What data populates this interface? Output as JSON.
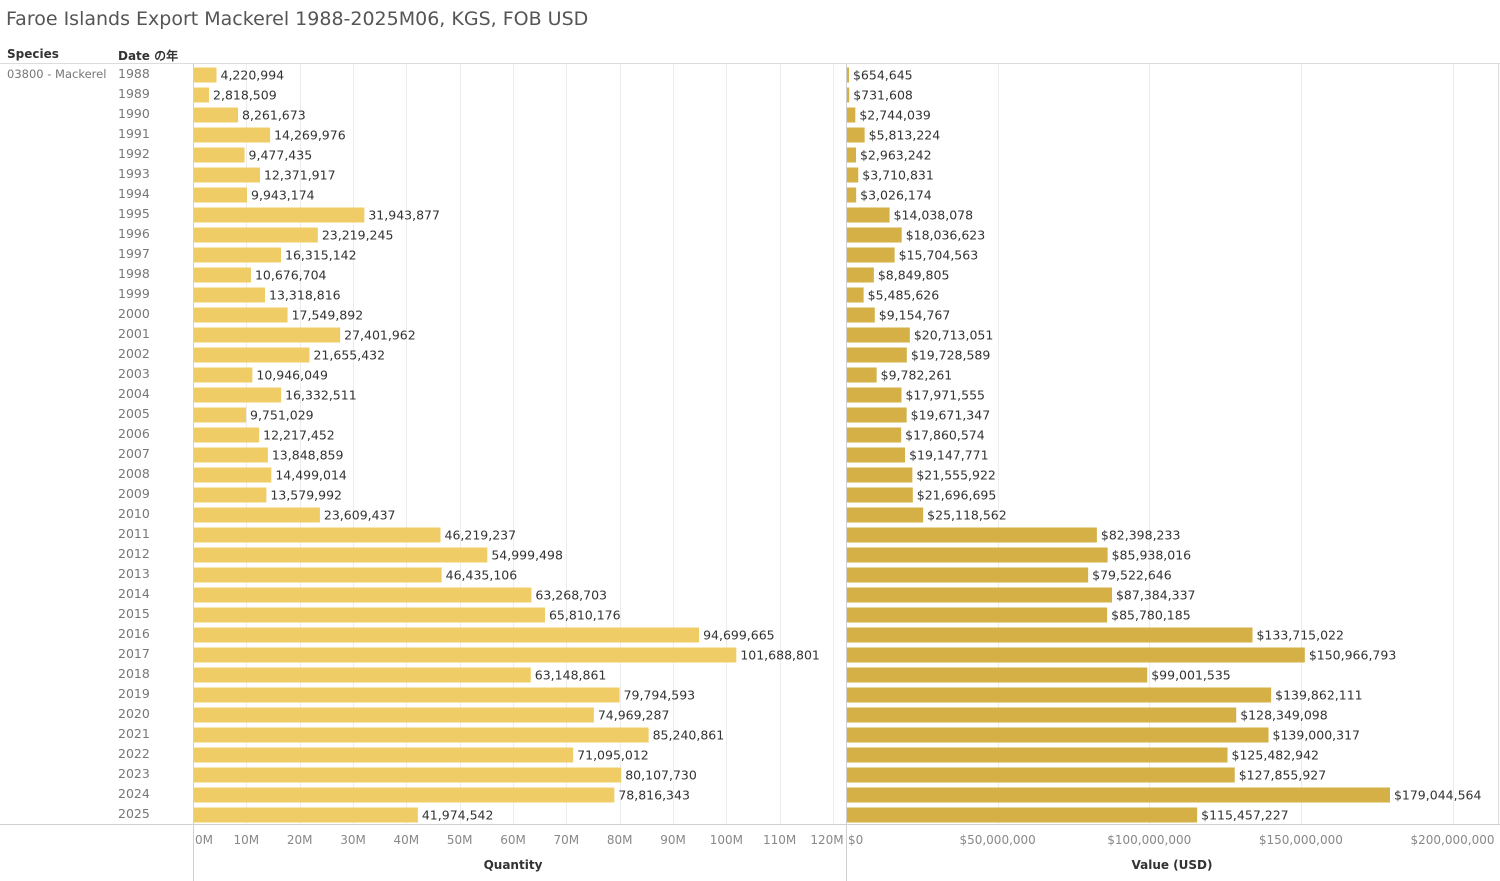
{
  "title": "Faroe Islands Export Mackerel 1988-2025M06, KGS, FOB USD",
  "headers": {
    "species": "Species",
    "date": "Date の年"
  },
  "species_value": "03800 - Mackerel",
  "colors": {
    "quantity_bar": "#f0cc67",
    "value_bar": "#d4b047",
    "grid": "#ececec",
    "axis": "#d0d0d0"
  },
  "chart_data": {
    "type": "bar",
    "orientation": "horizontal",
    "categories": [
      "1988",
      "1989",
      "1990",
      "1991",
      "1992",
      "1993",
      "1994",
      "1995",
      "1996",
      "1997",
      "1998",
      "1999",
      "2000",
      "2001",
      "2002",
      "2003",
      "2004",
      "2005",
      "2006",
      "2007",
      "2008",
      "2009",
      "2010",
      "2011",
      "2012",
      "2013",
      "2014",
      "2015",
      "2016",
      "2017",
      "2018",
      "2019",
      "2020",
      "2021",
      "2022",
      "2023",
      "2024",
      "2025"
    ],
    "series": [
      {
        "name": "Quantity",
        "xlabel": "Quantity",
        "xlim": [
          0,
          120000000
        ],
        "ticks": [
          0,
          10000000,
          20000000,
          30000000,
          40000000,
          50000000,
          60000000,
          70000000,
          80000000,
          90000000,
          100000000,
          110000000,
          120000000
        ],
        "tick_labels": [
          "0M",
          "10M",
          "20M",
          "30M",
          "40M",
          "50M",
          "60M",
          "70M",
          "80M",
          "90M",
          "100M",
          "110M",
          "120M"
        ],
        "values": [
          4220994,
          2818509,
          8261673,
          14269976,
          9477435,
          12371917,
          9943174,
          31943877,
          23219245,
          16315142,
          10676704,
          13318816,
          17549892,
          27401962,
          21655432,
          10946049,
          16332511,
          9751029,
          12217452,
          13848859,
          14499014,
          13579992,
          23609437,
          46219237,
          54999498,
          46435106,
          63268703,
          65810176,
          94699665,
          101688801,
          63148861,
          79794593,
          74969287,
          85240861,
          71095012,
          80107730,
          78816343,
          41974542
        ],
        "labels": [
          "4,220,994",
          "2,818,509",
          "8,261,673",
          "14,269,976",
          "9,477,435",
          "12,371,917",
          "9,943,174",
          "31,943,877",
          "23,219,245",
          "16,315,142",
          "10,676,704",
          "13,318,816",
          "17,549,892",
          "27,401,962",
          "21,655,432",
          "10,946,049",
          "16,332,511",
          "9,751,029",
          "12,217,452",
          "13,848,859",
          "14,499,014",
          "13,579,992",
          "23,609,437",
          "46,219,237",
          "54,999,498",
          "46,435,106",
          "63,268,703",
          "65,810,176",
          "94,699,665",
          "101,688,801",
          "63,148,861",
          "79,794,593",
          "74,969,287",
          "85,240,861",
          "71,095,012",
          "80,107,730",
          "78,816,343",
          "41,974,542"
        ]
      },
      {
        "name": "Value (USD)",
        "xlabel": "Value (USD)",
        "xlim": [
          0,
          215000000
        ],
        "ticks": [
          0,
          50000000,
          100000000,
          150000000,
          200000000
        ],
        "tick_labels": [
          "$0",
          "$50,000,000",
          "$100,000,000",
          "$150,000,000",
          "$200,000,000"
        ],
        "values": [
          654645,
          731608,
          2744039,
          5813224,
          2963242,
          3710831,
          3026174,
          14038078,
          18036623,
          15704563,
          8849805,
          5485626,
          9154767,
          20713051,
          19728589,
          9782261,
          17971555,
          19671347,
          17860574,
          19147771,
          21555922,
          21696695,
          25118562,
          82398233,
          85938016,
          79522646,
          87384337,
          85780185,
          133715022,
          150966793,
          99001535,
          139862111,
          128349098,
          139000317,
          125482942,
          127855927,
          179044564,
          115457227
        ],
        "labels": [
          "$654,645",
          "$731,608",
          "$2,744,039",
          "$5,813,224",
          "$2,963,242",
          "$3,710,831",
          "$3,026,174",
          "$14,038,078",
          "$18,036,623",
          "$15,704,563",
          "$8,849,805",
          "$5,485,626",
          "$9,154,767",
          "$20,713,051",
          "$19,728,589",
          "$9,782,261",
          "$17,971,555",
          "$19,671,347",
          "$17,860,574",
          "$19,147,771",
          "$21,555,922",
          "$21,696,695",
          "$25,118,562",
          "$82,398,233",
          "$85,938,016",
          "$79,522,646",
          "$87,384,337",
          "$85,780,185",
          "$133,715,022",
          "$150,966,793",
          "$99,001,535",
          "$139,862,111",
          "$128,349,098",
          "$139,000,317",
          "$125,482,942",
          "$127,855,927",
          "$179,044,564",
          "$115,457,227"
        ]
      }
    ]
  }
}
